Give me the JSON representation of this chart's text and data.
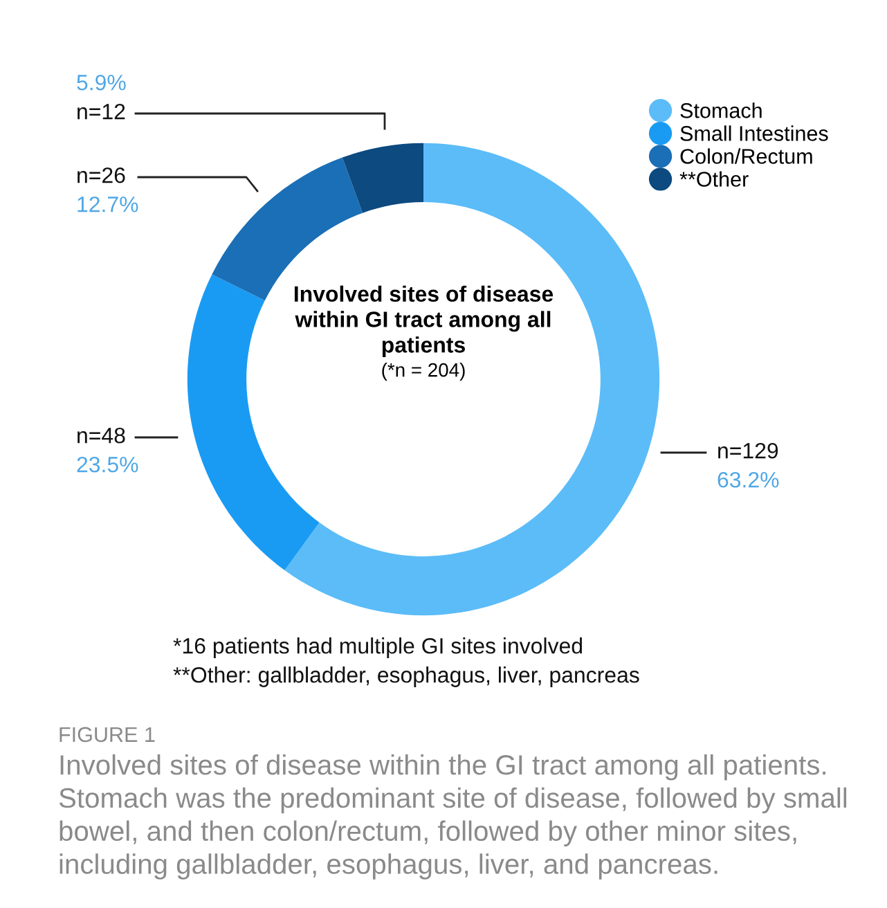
{
  "chart_data": {
    "type": "donut",
    "title": "Involved sites of disease\nwithin GI tract among all\npatients",
    "subtitle": "(*n = 204)",
    "categories": [
      "Stomach",
      "Small Intestines",
      "Colon/Rectum",
      "**Other"
    ],
    "values": [
      129,
      48,
      26,
      12
    ],
    "colors": [
      "#5bbcf8",
      "#1a9bf3",
      "#1a6fb6",
      "#0c4a80"
    ],
    "value_labels": [
      "n=129",
      "n=48",
      "n=26",
      "n=12"
    ],
    "legend": "top right",
    "annotations": [
      {
        "text": "63.2%",
        "x": "Stomach"
      },
      {
        "text": "23.5%",
        "x": "Small Intestines"
      },
      {
        "text": "12.7%",
        "x": "Colon/Rectum"
      },
      {
        "text": "5.9%",
        "x": "**Other"
      },
      "*16 patients had multiple GI sites involved",
      "**Other: gallbladder, esophagus, liver, pancreas",
      "FIGURE 1",
      "Involved sites of disease within the GI tract among all patients. Stomach was the predominant site of disease, followed by small bowel, and then colon/rectum, followed by other minor sites, including gallbladder, esophagus, liver, and pancreas."
    ]
  }
}
